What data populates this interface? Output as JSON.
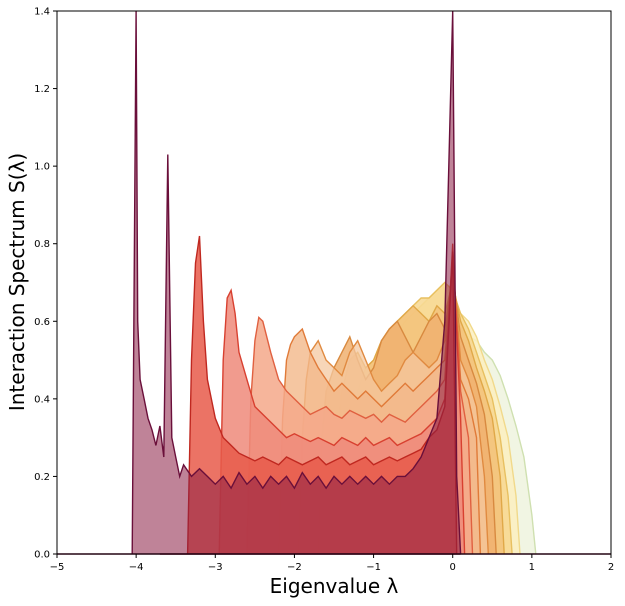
{
  "chart_data": {
    "type": "area",
    "title": "",
    "xlabel": "Eigenvalue λ",
    "ylabel": "Interaction Spectrum S(λ)",
    "xlim": [
      -5,
      2
    ],
    "ylim": [
      0,
      1.4
    ],
    "xticks": [
      -5,
      -4,
      -3,
      -2,
      -1,
      0,
      1,
      2
    ],
    "yticks": [
      0.0,
      0.2,
      0.4,
      0.6,
      0.8,
      1.0,
      1.2,
      1.4
    ],
    "xtick_labels": [
      "−5",
      "−4",
      "−3",
      "−2",
      "−1",
      "0",
      "1",
      "2"
    ],
    "ytick_labels": [
      "0.0",
      "0.2",
      "0.4",
      "0.6",
      "0.8",
      "1.0",
      "1.2",
      "1.4"
    ],
    "grid": false,
    "legend": "none",
    "series": [
      {
        "fill": "#f0f4e0",
        "line": "#cfe0b0",
        "fill_opacity": 0.9,
        "x": [
          -1.0,
          -0.95,
          -0.9,
          -0.8,
          -0.7,
          -0.6,
          -0.5,
          -0.4,
          -0.3,
          -0.2,
          -0.1,
          -0.05,
          0.0,
          0.05,
          0.1,
          0.2,
          0.3,
          0.4,
          0.5,
          0.6,
          0.7,
          0.8,
          0.9,
          1.0,
          1.05
        ],
        "y": [
          0.0,
          0.25,
          0.4,
          0.47,
          0.5,
          0.52,
          0.54,
          0.56,
          0.57,
          0.58,
          0.6,
          0.62,
          0.62,
          0.6,
          0.58,
          0.56,
          0.55,
          0.52,
          0.5,
          0.46,
          0.4,
          0.33,
          0.25,
          0.1,
          0.0
        ]
      },
      {
        "fill": "#fbeec0",
        "line": "#f1d98a",
        "fill_opacity": 0.85,
        "x": [
          -1.15,
          -1.1,
          -1.0,
          -0.9,
          -0.8,
          -0.7,
          -0.6,
          -0.5,
          -0.4,
          -0.3,
          -0.2,
          -0.1,
          0.0,
          0.1,
          0.2,
          0.3,
          0.4,
          0.5,
          0.6,
          0.7,
          0.8,
          0.85
        ],
        "y": [
          0.0,
          0.3,
          0.45,
          0.52,
          0.55,
          0.57,
          0.6,
          0.62,
          0.64,
          0.66,
          0.68,
          0.7,
          0.66,
          0.62,
          0.6,
          0.56,
          0.5,
          0.45,
          0.38,
          0.3,
          0.15,
          0.0
        ]
      },
      {
        "fill": "#f7d78f",
        "line": "#e8c060",
        "fill_opacity": 0.85,
        "x": [
          -1.3,
          -1.25,
          -1.2,
          -1.1,
          -1.0,
          -0.9,
          -0.8,
          -0.7,
          -0.6,
          -0.5,
          -0.4,
          -0.3,
          -0.2,
          -0.1,
          0.0,
          0.1,
          0.2,
          0.3,
          0.4,
          0.5,
          0.6,
          0.7,
          0.75
        ],
        "y": [
          0.0,
          0.3,
          0.42,
          0.48,
          0.5,
          0.55,
          0.58,
          0.6,
          0.62,
          0.64,
          0.66,
          0.66,
          0.68,
          0.7,
          0.68,
          0.62,
          0.58,
          0.52,
          0.46,
          0.4,
          0.3,
          0.15,
          0.0
        ]
      },
      {
        "fill": "#f3c27a",
        "line": "#e0a848",
        "fill_opacity": 0.85,
        "x": [
          -1.5,
          -1.45,
          -1.4,
          -1.3,
          -1.2,
          -1.1,
          -1.0,
          -0.9,
          -0.8,
          -0.7,
          -0.6,
          -0.5,
          -0.4,
          -0.3,
          -0.2,
          -0.1,
          0.0,
          0.1,
          0.2,
          0.3,
          0.4,
          0.5,
          0.6,
          0.65
        ],
        "y": [
          0.0,
          0.3,
          0.42,
          0.5,
          0.52,
          0.48,
          0.5,
          0.55,
          0.58,
          0.6,
          0.62,
          0.64,
          0.62,
          0.6,
          0.64,
          0.62,
          0.7,
          0.6,
          0.55,
          0.48,
          0.42,
          0.35,
          0.2,
          0.0
        ]
      },
      {
        "fill": "#f0b070",
        "line": "#d88a40",
        "fill_opacity": 0.85,
        "x": [
          -1.7,
          -1.65,
          -1.6,
          -1.5,
          -1.4,
          -1.3,
          -1.2,
          -1.1,
          -1.0,
          -0.9,
          -0.8,
          -0.7,
          -0.6,
          -0.5,
          -0.4,
          -0.3,
          -0.2,
          -0.1,
          0.0,
          0.1,
          0.2,
          0.3,
          0.4,
          0.5,
          0.55
        ],
        "y": [
          0.0,
          0.3,
          0.42,
          0.48,
          0.52,
          0.56,
          0.5,
          0.45,
          0.48,
          0.55,
          0.58,
          0.6,
          0.56,
          0.52,
          0.56,
          0.6,
          0.62,
          0.58,
          0.72,
          0.56,
          0.5,
          0.44,
          0.36,
          0.2,
          0.0
        ]
      },
      {
        "fill": "#f4c8a0",
        "line": "#e08a40",
        "fill_opacity": 0.75,
        "x": [
          -1.95,
          -1.9,
          -1.85,
          -1.8,
          -1.7,
          -1.6,
          -1.5,
          -1.4,
          -1.3,
          -1.2,
          -1.1,
          -1.0,
          -0.9,
          -0.8,
          -0.7,
          -0.6,
          -0.5,
          -0.4,
          -0.3,
          -0.2,
          -0.1,
          0.0,
          0.1,
          0.2,
          0.3,
          0.4,
          0.45
        ],
        "y": [
          0.0,
          0.3,
          0.45,
          0.52,
          0.55,
          0.5,
          0.48,
          0.46,
          0.52,
          0.55,
          0.5,
          0.45,
          0.42,
          0.44,
          0.46,
          0.5,
          0.52,
          0.5,
          0.48,
          0.5,
          0.55,
          0.74,
          0.5,
          0.45,
          0.38,
          0.2,
          0.0
        ]
      },
      {
        "fill": "#f2b88a",
        "line": "#e07a38",
        "fill_opacity": 0.8,
        "x": [
          -2.2,
          -2.15,
          -2.1,
          -2.05,
          -2.0,
          -1.9,
          -1.8,
          -1.7,
          -1.6,
          -1.5,
          -1.4,
          -1.3,
          -1.2,
          -1.1,
          -1.0,
          -0.9,
          -0.8,
          -0.7,
          -0.6,
          -0.5,
          -0.4,
          -0.3,
          -0.2,
          -0.1,
          0.0,
          0.1,
          0.2,
          0.3,
          0.35
        ],
        "y": [
          0.0,
          0.35,
          0.5,
          0.54,
          0.56,
          0.58,
          0.52,
          0.48,
          0.45,
          0.42,
          0.44,
          0.42,
          0.4,
          0.42,
          0.4,
          0.38,
          0.4,
          0.42,
          0.44,
          0.42,
          0.44,
          0.46,
          0.48,
          0.5,
          0.76,
          0.45,
          0.4,
          0.3,
          0.0
        ]
      },
      {
        "fill": "#f4a88a",
        "line": "#e06040",
        "fill_opacity": 0.85,
        "x": [
          -2.6,
          -2.55,
          -2.5,
          -2.45,
          -2.4,
          -2.3,
          -2.2,
          -2.1,
          -2.0,
          -1.9,
          -1.8,
          -1.7,
          -1.6,
          -1.5,
          -1.4,
          -1.3,
          -1.2,
          -1.1,
          -1.0,
          -0.9,
          -0.8,
          -0.7,
          -0.6,
          -0.5,
          -0.4,
          -0.3,
          -0.2,
          -0.1,
          0.0,
          0.1,
          0.2,
          0.25
        ],
        "y": [
          0.0,
          0.4,
          0.55,
          0.61,
          0.6,
          0.52,
          0.45,
          0.42,
          0.4,
          0.38,
          0.36,
          0.37,
          0.38,
          0.36,
          0.35,
          0.37,
          0.36,
          0.35,
          0.36,
          0.34,
          0.36,
          0.35,
          0.34,
          0.36,
          0.38,
          0.4,
          0.42,
          0.45,
          0.78,
          0.42,
          0.3,
          0.0
        ]
      },
      {
        "fill": "#ee8a7a",
        "line": "#d84030",
        "fill_opacity": 0.85,
        "x": [
          -2.95,
          -2.9,
          -2.85,
          -2.8,
          -2.75,
          -2.7,
          -2.6,
          -2.5,
          -2.4,
          -2.3,
          -2.2,
          -2.1,
          -2.0,
          -1.9,
          -1.8,
          -1.7,
          -1.6,
          -1.5,
          -1.4,
          -1.3,
          -1.2,
          -1.1,
          -1.0,
          -0.9,
          -0.8,
          -0.7,
          -0.6,
          -0.5,
          -0.4,
          -0.3,
          -0.2,
          -0.1,
          0.0,
          0.1,
          0.15
        ],
        "y": [
          0.0,
          0.5,
          0.66,
          0.68,
          0.62,
          0.52,
          0.45,
          0.38,
          0.36,
          0.34,
          0.32,
          0.3,
          0.31,
          0.3,
          0.29,
          0.3,
          0.29,
          0.28,
          0.3,
          0.29,
          0.28,
          0.3,
          0.28,
          0.29,
          0.3,
          0.28,
          0.29,
          0.3,
          0.31,
          0.33,
          0.35,
          0.4,
          0.8,
          0.35,
          0.0
        ]
      },
      {
        "fill": "#e85a4a",
        "line": "#c02820",
        "fill_opacity": 0.85,
        "x": [
          -3.35,
          -3.3,
          -3.25,
          -3.2,
          -3.15,
          -3.1,
          -3.0,
          -2.9,
          -2.8,
          -2.7,
          -2.6,
          -2.5,
          -2.4,
          -2.3,
          -2.2,
          -2.1,
          -2.0,
          -1.9,
          -1.8,
          -1.7,
          -1.6,
          -1.5,
          -1.4,
          -1.3,
          -1.2,
          -1.1,
          -1.0,
          -0.9,
          -0.8,
          -0.7,
          -0.6,
          -0.5,
          -0.4,
          -0.3,
          -0.2,
          -0.1,
          0.0,
          0.05
        ],
        "y": [
          0.0,
          0.5,
          0.75,
          0.82,
          0.6,
          0.45,
          0.35,
          0.3,
          0.28,
          0.26,
          0.25,
          0.24,
          0.25,
          0.24,
          0.23,
          0.25,
          0.24,
          0.23,
          0.24,
          0.25,
          0.23,
          0.24,
          0.25,
          0.23,
          0.24,
          0.25,
          0.23,
          0.24,
          0.25,
          0.24,
          0.25,
          0.26,
          0.27,
          0.3,
          0.32,
          0.38,
          0.78,
          0.0
        ]
      },
      {
        "fill": "#8a1e44",
        "line": "#6a0f3a",
        "fill_opacity": 0.55,
        "x": [
          -4.05,
          -4.0,
          -3.98,
          -3.95,
          -3.9,
          -3.85,
          -3.8,
          -3.75,
          -3.7,
          -3.65,
          -3.6,
          -3.55,
          -3.5,
          -3.45,
          -3.4,
          -3.3,
          -3.2,
          -3.1,
          -3.0,
          -2.9,
          -2.8,
          -2.7,
          -2.6,
          -2.5,
          -2.4,
          -2.3,
          -2.2,
          -2.1,
          -2.0,
          -1.9,
          -1.8,
          -1.7,
          -1.6,
          -1.5,
          -1.4,
          -1.3,
          -1.2,
          -1.1,
          -1.0,
          -0.9,
          -0.8,
          -0.7,
          -0.6,
          -0.5,
          -0.4,
          -0.3,
          -0.2,
          -0.1,
          -0.05,
          0.0,
          0.05,
          0.1
        ],
        "y": [
          0.0,
          1.4,
          0.6,
          0.45,
          0.4,
          0.35,
          0.32,
          0.28,
          0.33,
          0.25,
          1.03,
          0.3,
          0.25,
          0.2,
          0.23,
          0.2,
          0.22,
          0.2,
          0.18,
          0.2,
          0.17,
          0.21,
          0.18,
          0.2,
          0.17,
          0.2,
          0.18,
          0.2,
          0.17,
          0.21,
          0.18,
          0.2,
          0.17,
          0.2,
          0.18,
          0.2,
          0.18,
          0.2,
          0.18,
          0.2,
          0.18,
          0.2,
          0.2,
          0.22,
          0.25,
          0.3,
          0.35,
          0.6,
          1.0,
          1.4,
          0.2,
          0.0
        ]
      },
      {
        "fill": "#a01e34",
        "line": "#7a1030",
        "fill_opacity": 0.95,
        "x": [
          -3.7,
          -3.65,
          -3.6,
          -3.55,
          -3.5,
          -3.45,
          -3.4,
          -3.3,
          -3.2,
          -3.1,
          -3.0,
          -2.9,
          -2.8,
          -2.7,
          -2.6,
          -2.5,
          -2.4,
          -2.3,
          -2.2,
          -2.1,
          -2.0,
          -1.9,
          -1.8,
          -1.7,
          -1.6,
          -1.5,
          -1.4,
          -1.3,
          -1.2,
          -1.1,
          -1.0,
          -0.95,
          -0.9,
          -0.85,
          -0.8,
          -0.75,
          -0.7,
          -0.6,
          -0.5,
          -0.4,
          -0.3,
          -0.2,
          -0.1,
          -0.05,
          0.0,
          0.05,
          0.1
        ],
        "y": [
          0.0,
          0.0,
          0.0,
          0.0,
          0.0,
          0.0,
          0.0,
          0.0,
          0.0,
          0.0,
          0.0,
          0.0,
          0.0,
          0.0,
          0.0,
          0.0,
          0.0,
          0.0,
          0.0,
          0.0,
          0.0,
          0.0,
          0.0,
          0.0,
          0.0,
          0.0,
          0.0,
          0.0,
          0.0,
          0.0,
          0.0,
          0.0,
          0.0,
          0.0,
          0.0,
          0.0,
          0.0,
          0.0,
          0.0,
          0.0,
          0.0,
          0.0,
          0.0,
          0.0,
          0.0,
          0.0,
          0.0
        ]
      }
    ]
  }
}
